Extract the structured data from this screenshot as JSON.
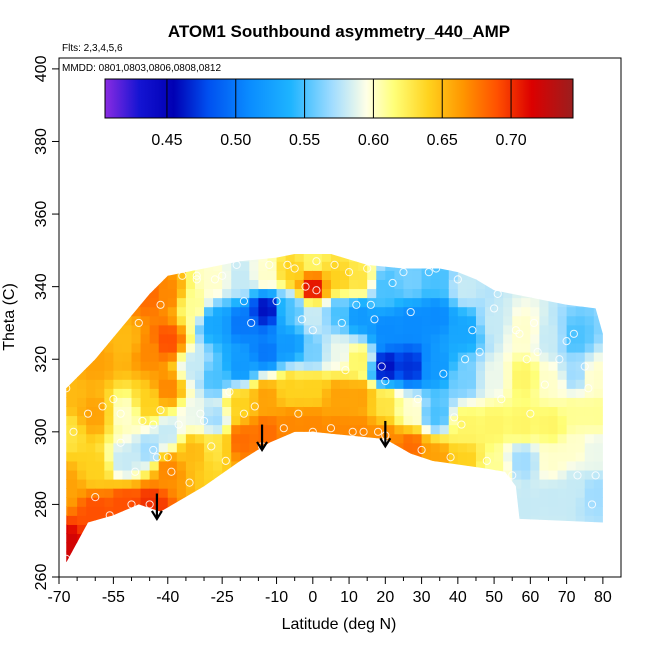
{
  "chart_data": {
    "type": "heatmap",
    "title": "ATOM1 Southbound asymmetry_440_AMP",
    "annotations": [
      "Flts: 2,3,4,5,6",
      "MMDD: 0801,0803,0806,0808,0812"
    ],
    "xlabel": "Latitude (deg N)",
    "ylabel": "Theta (C)",
    "xlim": [
      -70,
      85
    ],
    "ylim": [
      260,
      403
    ],
    "x_major_ticks": [
      -70,
      -55,
      -40,
      -25,
      -10,
      0,
      10,
      20,
      30,
      40,
      50,
      60,
      70,
      80
    ],
    "x_tick_labels": [
      "-70",
      "-55",
      "-40",
      "-25",
      "-10",
      "0",
      "10",
      "20",
      "30",
      "40",
      "50",
      "60",
      "70",
      "80"
    ],
    "x_minor_ticks": [
      -65,
      -60,
      -50,
      -45,
      -35,
      -30,
      -20,
      -15,
      -5,
      5,
      15,
      25,
      35,
      45,
      55,
      65,
      75
    ],
    "y_ticks": [
      260,
      280,
      300,
      320,
      340,
      360,
      380,
      400
    ],
    "y_tick_labels": [
      "260",
      "280",
      "300",
      "320",
      "340",
      "360",
      "380",
      "400"
    ],
    "colorbar": {
      "range": [
        0.405,
        0.745
      ],
      "ticks": [
        0.45,
        0.5,
        0.55,
        0.6,
        0.65,
        0.7
      ],
      "tick_labels": [
        "0.45",
        "0.50",
        "0.55",
        "0.60",
        "0.65",
        "0.70"
      ],
      "colors": [
        {
          "v": 0.405,
          "c": "#8a2be2"
        },
        {
          "v": 0.43,
          "c": "#1414d2"
        },
        {
          "v": 0.455,
          "c": "#0000b4"
        },
        {
          "v": 0.48,
          "c": "#0050f0"
        },
        {
          "v": 0.51,
          "c": "#0a8cff"
        },
        {
          "v": 0.54,
          "c": "#1eb4ff"
        },
        {
          "v": 0.57,
          "c": "#a0dcff"
        },
        {
          "v": 0.595,
          "c": "#ffffe6"
        },
        {
          "v": 0.615,
          "c": "#ffff78"
        },
        {
          "v": 0.64,
          "c": "#ffd21e"
        },
        {
          "v": 0.665,
          "c": "#ff9600"
        },
        {
          "v": 0.69,
          "c": "#ff5000"
        },
        {
          "v": 0.715,
          "c": "#dc0000"
        },
        {
          "v": 0.745,
          "c": "#9b1e1e"
        }
      ]
    },
    "field_samples": [
      {
        "x": -68,
        "y": 268,
        "v": 0.72
      },
      {
        "x": -68,
        "y": 285,
        "v": 0.66
      },
      {
        "x": -68,
        "y": 300,
        "v": 0.63
      },
      {
        "x": -68,
        "y": 310,
        "v": 0.65
      },
      {
        "x": -60,
        "y": 278,
        "v": 0.69
      },
      {
        "x": -60,
        "y": 290,
        "v": 0.64
      },
      {
        "x": -60,
        "y": 305,
        "v": 0.66
      },
      {
        "x": -60,
        "y": 320,
        "v": 0.66
      },
      {
        "x": -52,
        "y": 280,
        "v": 0.69
      },
      {
        "x": -52,
        "y": 292,
        "v": 0.58
      },
      {
        "x": -52,
        "y": 305,
        "v": 0.6
      },
      {
        "x": -52,
        "y": 325,
        "v": 0.65
      },
      {
        "x": -45,
        "y": 280,
        "v": 0.7
      },
      {
        "x": -45,
        "y": 295,
        "v": 0.57
      },
      {
        "x": -45,
        "y": 308,
        "v": 0.64
      },
      {
        "x": -45,
        "y": 322,
        "v": 0.67
      },
      {
        "x": -45,
        "y": 338,
        "v": 0.68
      },
      {
        "x": -40,
        "y": 290,
        "v": 0.67
      },
      {
        "x": -40,
        "y": 300,
        "v": 0.58
      },
      {
        "x": -40,
        "y": 312,
        "v": 0.67
      },
      {
        "x": -40,
        "y": 325,
        "v": 0.69
      },
      {
        "x": -40,
        "y": 338,
        "v": 0.67
      },
      {
        "x": -33,
        "y": 295,
        "v": 0.65
      },
      {
        "x": -33,
        "y": 305,
        "v": 0.59
      },
      {
        "x": -33,
        "y": 318,
        "v": 0.58
      },
      {
        "x": -33,
        "y": 335,
        "v": 0.61
      },
      {
        "x": -27,
        "y": 297,
        "v": 0.63
      },
      {
        "x": -27,
        "y": 303,
        "v": 0.57
      },
      {
        "x": -27,
        "y": 315,
        "v": 0.55
      },
      {
        "x": -27,
        "y": 330,
        "v": 0.53
      },
      {
        "x": -27,
        "y": 342,
        "v": 0.6
      },
      {
        "x": -20,
        "y": 298,
        "v": 0.68
      },
      {
        "x": -20,
        "y": 308,
        "v": 0.64
      },
      {
        "x": -20,
        "y": 318,
        "v": 0.52
      },
      {
        "x": -20,
        "y": 330,
        "v": 0.5
      },
      {
        "x": -20,
        "y": 342,
        "v": 0.58
      },
      {
        "x": -13,
        "y": 300,
        "v": 0.68
      },
      {
        "x": -13,
        "y": 310,
        "v": 0.66
      },
      {
        "x": -13,
        "y": 322,
        "v": 0.5
      },
      {
        "x": -13,
        "y": 334,
        "v": 0.46
      },
      {
        "x": -13,
        "y": 343,
        "v": 0.6
      },
      {
        "x": -6,
        "y": 302,
        "v": 0.67
      },
      {
        "x": -6,
        "y": 312,
        "v": 0.64
      },
      {
        "x": -6,
        "y": 324,
        "v": 0.52
      },
      {
        "x": -6,
        "y": 334,
        "v": 0.55
      },
      {
        "x": -6,
        "y": 344,
        "v": 0.64
      },
      {
        "x": 0,
        "y": 302,
        "v": 0.67
      },
      {
        "x": 0,
        "y": 312,
        "v": 0.64
      },
      {
        "x": 0,
        "y": 322,
        "v": 0.56
      },
      {
        "x": 0,
        "y": 332,
        "v": 0.58
      },
      {
        "x": 0,
        "y": 340,
        "v": 0.71
      },
      {
        "x": 0,
        "y": 347,
        "v": 0.62
      },
      {
        "x": 7,
        "y": 300,
        "v": 0.67
      },
      {
        "x": 7,
        "y": 310,
        "v": 0.66
      },
      {
        "x": 7,
        "y": 322,
        "v": 0.59
      },
      {
        "x": 7,
        "y": 333,
        "v": 0.55
      },
      {
        "x": 7,
        "y": 342,
        "v": 0.64
      },
      {
        "x": 13,
        "y": 300,
        "v": 0.67
      },
      {
        "x": 13,
        "y": 310,
        "v": 0.66
      },
      {
        "x": 13,
        "y": 320,
        "v": 0.62
      },
      {
        "x": 13,
        "y": 332,
        "v": 0.52
      },
      {
        "x": 13,
        "y": 342,
        "v": 0.63
      },
      {
        "x": 20,
        "y": 298,
        "v": 0.67
      },
      {
        "x": 20,
        "y": 308,
        "v": 0.63
      },
      {
        "x": 20,
        "y": 318,
        "v": 0.46
      },
      {
        "x": 20,
        "y": 328,
        "v": 0.51
      },
      {
        "x": 20,
        "y": 340,
        "v": 0.55
      },
      {
        "x": 27,
        "y": 296,
        "v": 0.68
      },
      {
        "x": 27,
        "y": 306,
        "v": 0.6
      },
      {
        "x": 27,
        "y": 318,
        "v": 0.47
      },
      {
        "x": 27,
        "y": 330,
        "v": 0.51
      },
      {
        "x": 27,
        "y": 342,
        "v": 0.56
      },
      {
        "x": 34,
        "y": 293,
        "v": 0.66
      },
      {
        "x": 34,
        "y": 305,
        "v": 0.55
      },
      {
        "x": 34,
        "y": 318,
        "v": 0.52
      },
      {
        "x": 34,
        "y": 332,
        "v": 0.51
      },
      {
        "x": 34,
        "y": 342,
        "v": 0.55
      },
      {
        "x": 42,
        "y": 292,
        "v": 0.64
      },
      {
        "x": 42,
        "y": 302,
        "v": 0.62
      },
      {
        "x": 42,
        "y": 315,
        "v": 0.56
      },
      {
        "x": 42,
        "y": 328,
        "v": 0.53
      },
      {
        "x": 42,
        "y": 340,
        "v": 0.58
      },
      {
        "x": 50,
        "y": 290,
        "v": 0.61
      },
      {
        "x": 50,
        "y": 302,
        "v": 0.62
      },
      {
        "x": 50,
        "y": 315,
        "v": 0.59
      },
      {
        "x": 50,
        "y": 330,
        "v": 0.58
      },
      {
        "x": 58,
        "y": 280,
        "v": 0.58
      },
      {
        "x": 58,
        "y": 292,
        "v": 0.57
      },
      {
        "x": 58,
        "y": 302,
        "v": 0.62
      },
      {
        "x": 58,
        "y": 315,
        "v": 0.62
      },
      {
        "x": 58,
        "y": 328,
        "v": 0.6
      },
      {
        "x": 66,
        "y": 282,
        "v": 0.58
      },
      {
        "x": 66,
        "y": 292,
        "v": 0.6
      },
      {
        "x": 66,
        "y": 302,
        "v": 0.62
      },
      {
        "x": 66,
        "y": 314,
        "v": 0.6
      },
      {
        "x": 66,
        "y": 326,
        "v": 0.58
      },
      {
        "x": 72,
        "y": 285,
        "v": 0.58
      },
      {
        "x": 72,
        "y": 296,
        "v": 0.6
      },
      {
        "x": 72,
        "y": 305,
        "v": 0.61
      },
      {
        "x": 72,
        "y": 316,
        "v": 0.57
      },
      {
        "x": 72,
        "y": 326,
        "v": 0.55
      },
      {
        "x": 78,
        "y": 283,
        "v": 0.57
      },
      {
        "x": 78,
        "y": 295,
        "v": 0.59
      },
      {
        "x": 78,
        "y": 305,
        "v": 0.61
      },
      {
        "x": 78,
        "y": 315,
        "v": 0.6
      }
    ],
    "data_extent": {
      "top": [
        [
          -68,
          312
        ],
        [
          -60,
          320
        ],
        [
          -50,
          332
        ],
        [
          -45,
          338
        ],
        [
          -40,
          343
        ],
        [
          -30,
          345
        ],
        [
          -20,
          347
        ],
        [
          -10,
          348
        ],
        [
          -5,
          349
        ],
        [
          5,
          349
        ],
        [
          15,
          346
        ],
        [
          25,
          345
        ],
        [
          35,
          345
        ],
        [
          40,
          344
        ],
        [
          45,
          342
        ],
        [
          50,
          339
        ],
        [
          55,
          338
        ],
        [
          60,
          337
        ],
        [
          70,
          335
        ],
        [
          78,
          334
        ],
        [
          80,
          327
        ]
      ],
      "bottom": [
        [
          -68,
          264
        ],
        [
          -62,
          275
        ],
        [
          -55,
          277
        ],
        [
          -48,
          280
        ],
        [
          -42,
          278
        ],
        [
          -30,
          285
        ],
        [
          -20,
          292
        ],
        [
          -12,
          297
        ],
        [
          -5,
          300
        ],
        [
          0,
          300
        ],
        [
          10,
          299
        ],
        [
          20,
          298
        ],
        [
          27,
          294
        ],
        [
          33,
          292
        ],
        [
          40,
          291
        ],
        [
          47,
          290
        ],
        [
          53,
          289
        ],
        [
          56,
          285
        ],
        [
          57,
          276
        ],
        [
          80,
          275
        ]
      ]
    },
    "sample_points": [
      [
        -68,
        265
      ],
      [
        -68,
        312
      ],
      [
        -66,
        300
      ],
      [
        -62,
        305
      ],
      [
        -60,
        282
      ],
      [
        -58,
        307
      ],
      [
        -56,
        277
      ],
      [
        -55,
        309
      ],
      [
        -53,
        297
      ],
      [
        -53,
        305
      ],
      [
        -50,
        280
      ],
      [
        -49,
        289
      ],
      [
        -48,
        330
      ],
      [
        -47,
        303
      ],
      [
        -46,
        340
      ],
      [
        -45,
        280
      ],
      [
        -44,
        295
      ],
      [
        -44,
        302
      ],
      [
        -43,
        293
      ],
      [
        -42,
        335
      ],
      [
        -42,
        306
      ],
      [
        -40,
        293
      ],
      [
        -39,
        289
      ],
      [
        -37,
        302
      ],
      [
        -36,
        343
      ],
      [
        -34,
        286
      ],
      [
        -32,
        343
      ],
      [
        -32,
        342
      ],
      [
        -31,
        305
      ],
      [
        -30,
        303
      ],
      [
        -28,
        296
      ],
      [
        -27,
        342
      ],
      [
        -25,
        343
      ],
      [
        -24,
        292
      ],
      [
        -23,
        311
      ],
      [
        -21,
        346
      ],
      [
        -19,
        336
      ],
      [
        -19,
        305
      ],
      [
        -17,
        330
      ],
      [
        -16,
        307
      ],
      [
        -14,
        296
      ],
      [
        -12,
        346
      ],
      [
        -10,
        336
      ],
      [
        -8,
        301
      ],
      [
        -7,
        346
      ],
      [
        -5,
        345
      ],
      [
        -4,
        305
      ],
      [
        -3,
        331
      ],
      [
        -2,
        340
      ],
      [
        0,
        299
      ],
      [
        0,
        300
      ],
      [
        0,
        328
      ],
      [
        1,
        339
      ],
      [
        1,
        347
      ],
      [
        3,
        298
      ],
      [
        5,
        301
      ],
      [
        6,
        346
      ],
      [
        8,
        330
      ],
      [
        9,
        317
      ],
      [
        10,
        344
      ],
      [
        11,
        300
      ],
      [
        12,
        335
      ],
      [
        14,
        300
      ],
      [
        15,
        345
      ],
      [
        16,
        335
      ],
      [
        17,
        331
      ],
      [
        18,
        300
      ],
      [
        19,
        318
      ],
      [
        20,
        314
      ],
      [
        20,
        299
      ],
      [
        22,
        341
      ],
      [
        25,
        344
      ],
      [
        27,
        333
      ],
      [
        29,
        309
      ],
      [
        30,
        295
      ],
      [
        32,
        344
      ],
      [
        34,
        345
      ],
      [
        36,
        316
      ],
      [
        38,
        293
      ],
      [
        39,
        304
      ],
      [
        40,
        342
      ],
      [
        41,
        302
      ],
      [
        42,
        320
      ],
      [
        44,
        328
      ],
      [
        46,
        322
      ],
      [
        48,
        292
      ],
      [
        50,
        334
      ],
      [
        51,
        338
      ],
      [
        52,
        309
      ],
      [
        55,
        288
      ],
      [
        56,
        328
      ],
      [
        57,
        327
      ],
      [
        59,
        320
      ],
      [
        60,
        305
      ],
      [
        61,
        330
      ],
      [
        62,
        322
      ],
      [
        64,
        313
      ],
      [
        68,
        320
      ],
      [
        70,
        325
      ],
      [
        72,
        327
      ],
      [
        73,
        288
      ],
      [
        75,
        318
      ],
      [
        76,
        312
      ],
      [
        77,
        280
      ],
      [
        78,
        288
      ]
    ],
    "arrows": [
      {
        "x": -43,
        "y_from": 283,
        "y_to": 276
      },
      {
        "x": -14,
        "y_from": 302,
        "y_to": 295
      },
      {
        "x": 20,
        "y_from": 303,
        "y_to": 296
      }
    ]
  }
}
